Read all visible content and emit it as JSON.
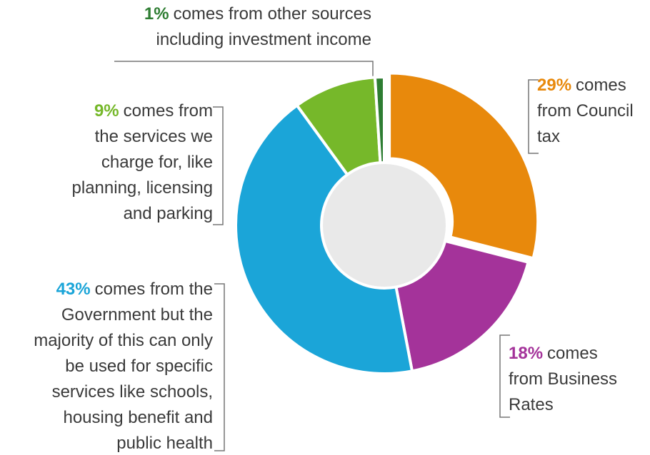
{
  "chart_data": {
    "type": "pie",
    "values": [
      29,
      18,
      43,
      9,
      1
    ],
    "value_labels": [
      "29%",
      "18%",
      "43%",
      "9%",
      "1%"
    ],
    "categories": [
      "comes\nfrom Council\ntax",
      "comes\nfrom Business\nRates",
      "comes from the\nGovernment but the\nmajority of this can only\nbe used for specific\nservices like schools,\nhousing benefit and\npublic health",
      "comes from\nthe services we\ncharge for, like\nplanning, licensing\nand parking",
      "comes from other sources\nincluding investment income"
    ],
    "colors": [
      "#e8890c",
      "#a4339a",
      "#1ba5d8",
      "#76b82a",
      "#2e7d32"
    ]
  }
}
